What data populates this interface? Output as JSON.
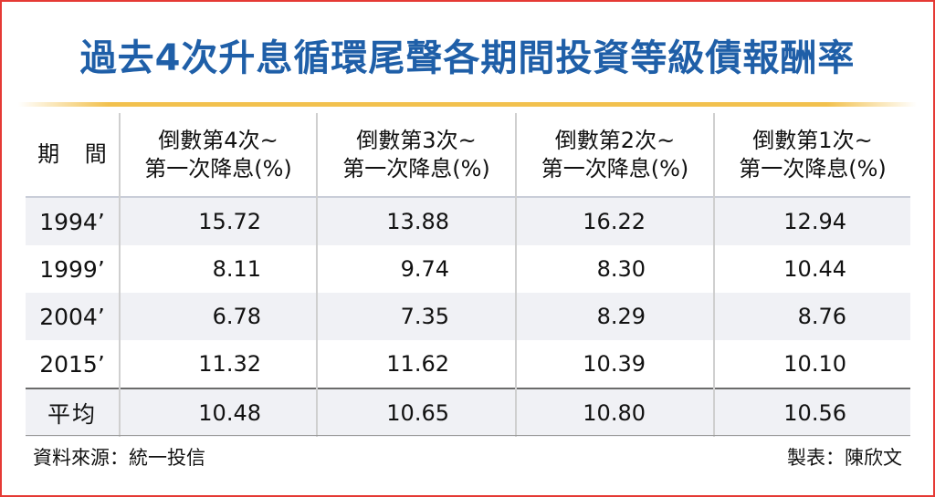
{
  "title": "過去4次升息循環尾聲各期間投資等級債報酬率",
  "columns": {
    "period": "期 間",
    "c1": {
      "line1": "倒數第4次~",
      "line2": "第一次降息(%)"
    },
    "c2": {
      "line1": "倒數第3次~",
      "line2": "第一次降息(%)"
    },
    "c3": {
      "line1": "倒數第2次~",
      "line2": "第一次降息(%)"
    },
    "c4": {
      "line1": "倒數第1次~",
      "line2": "第一次降息(%)"
    }
  },
  "rows": [
    {
      "period": "1994’",
      "c1": "15.72",
      "c2": "13.88",
      "c3": "16.22",
      "c4": "12.94"
    },
    {
      "period": "1999’",
      "c1": "8.11",
      "c2": "9.74",
      "c3": "8.30",
      "c4": "10.44"
    },
    {
      "period": "2004’",
      "c1": "6.78",
      "c2": "7.35",
      "c3": "8.29",
      "c4": "8.76"
    },
    {
      "period": "2015’",
      "c1": "11.32",
      "c2": "11.62",
      "c3": "10.39",
      "c4": "10.10"
    },
    {
      "period": "平均",
      "c1": "10.48",
      "c2": "10.65",
      "c3": "10.80",
      "c4": "10.56"
    }
  ],
  "footer": {
    "source": "資料來源：統一投信",
    "credit": "製表：陳欣文"
  },
  "chart_data": {
    "type": "table",
    "title": "過去4次升息循環尾聲各期間投資等級債報酬率",
    "columns": [
      "期 間",
      "倒數第4次~第一次降息(%)",
      "倒數第3次~第一次降息(%)",
      "倒數第2次~第一次降息(%)",
      "倒數第1次~第一次降息(%)"
    ],
    "rows": [
      [
        "1994’",
        15.72,
        13.88,
        16.22,
        12.94
      ],
      [
        "1999’",
        8.11,
        9.74,
        8.3,
        10.44
      ],
      [
        "2004’",
        6.78,
        7.35,
        8.29,
        8.76
      ],
      [
        "2015’",
        11.32,
        11.62,
        10.39,
        10.1
      ],
      [
        "平均",
        10.48,
        10.65,
        10.8,
        10.56
      ]
    ]
  },
  "colors": {
    "title": "#1f5fa8",
    "frame": "#e53a35",
    "rule": "#f2c14e",
    "row_shade": "#f0f1f5"
  }
}
